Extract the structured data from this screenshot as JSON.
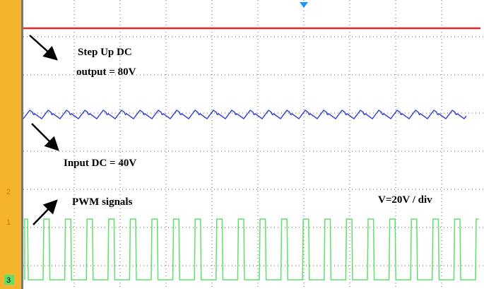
{
  "annotations": {
    "step_up_line1": "Step Up DC",
    "step_up_line2": "output = 80V",
    "input": "Input DC = 40V",
    "pwm": "PWM signals",
    "scale": "V=20V / div"
  },
  "channel_markers": [
    "2",
    "1",
    "3"
  ]
}
